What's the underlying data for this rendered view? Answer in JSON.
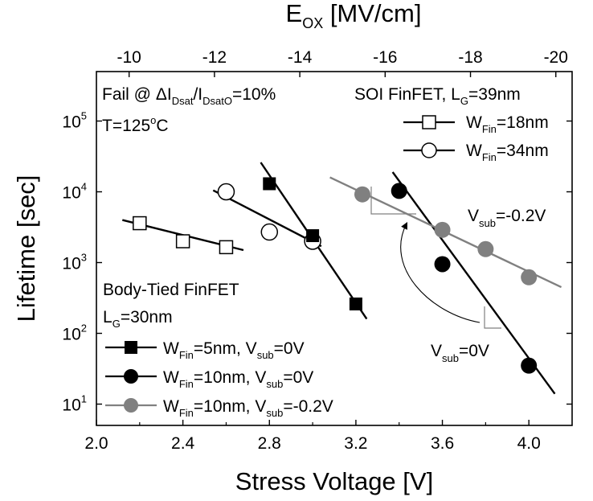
{
  "chart_data": {
    "type": "scatter",
    "xlabel": "Stress Voltage [V]",
    "ylabel": "Lifetime [sec]",
    "x2label": "E",
    "x2label_sub": "OX",
    "x2label_unit": " [MV/cm]",
    "xlim": [
      2.0,
      4.2
    ],
    "ylim": [
      5,
      500000
    ],
    "yscale": "log",
    "x_ticks": [
      "2.0",
      "2.4",
      "2.8",
      "3.2",
      "3.6",
      "4.0"
    ],
    "x_tick_values": [
      2.0,
      2.4,
      2.8,
      3.2,
      3.6,
      4.0
    ],
    "x2_ticks": [
      "-10",
      "-12",
      "-14",
      "-16",
      "-18",
      "-20"
    ],
    "x2_tick_values": [
      -10,
      -12,
      -14,
      -16,
      -18,
      -20
    ],
    "x2_map": {
      "slope": -5.067,
      "intercept": 0.9
    },
    "y_ticks": [
      {
        "value": 10,
        "base": "10",
        "exp": "1"
      },
      {
        "value": 100,
        "base": "10",
        "exp": "2"
      },
      {
        "value": 1000,
        "base": "10",
        "exp": "3"
      },
      {
        "value": 10000,
        "base": "10",
        "exp": "4"
      },
      {
        "value": 100000,
        "base": "10",
        "exp": "5"
      }
    ],
    "series": [
      {
        "marker": "open-square",
        "color": "#000000",
        "x": [
          2.2,
          2.4,
          2.6
        ],
        "y": [
          3600,
          2000,
          1650
        ],
        "fit": [
          [
            2.12,
            4000
          ],
          [
            2.68,
            1500
          ]
        ]
      },
      {
        "marker": "open-circle",
        "color": "#000000",
        "x": [
          2.6,
          2.8,
          3.0
        ],
        "y": [
          10000,
          2700,
          2000
        ],
        "fit": [
          [
            2.54,
            10500
          ],
          [
            3.04,
            1700
          ]
        ]
      },
      {
        "marker": "filled-square",
        "color": "#000000",
        "x": [
          2.8,
          3.0,
          3.2
        ],
        "y": [
          13000,
          2400,
          260
        ],
        "fit": [
          [
            2.76,
            26000
          ],
          [
            3.25,
            160
          ]
        ]
      },
      {
        "marker": "filled-circle",
        "color": "#000000",
        "x": [
          3.4,
          3.6,
          4.0
        ],
        "y": [
          10300,
          950,
          35
        ],
        "fit": [
          [
            3.37,
            19000
          ],
          [
            4.12,
            14
          ]
        ]
      },
      {
        "marker": "filled-circle",
        "color": "#808080",
        "x": [
          3.23,
          3.6,
          3.8,
          4.0
        ],
        "y": [
          9200,
          2900,
          1550,
          620
        ],
        "fit": [
          [
            3.08,
            16000
          ],
          [
            4.15,
            450
          ]
        ]
      }
    ],
    "annotations": {
      "fail_prefix": "Fail @ ",
      "fail_delta": "Δ",
      "fail_I1": "I",
      "fail_sub1": "Dsat",
      "fail_slash": "/I",
      "fail_sub2": "DsatO",
      "fail_rest": "=10%",
      "temp": "T=125",
      "temp_deg": "o",
      "temp_unit": "C",
      "soi_title": "SOI FinFET, L",
      "soi_sub": "G",
      "soi_rest": "=39nm",
      "body_title": "Body-Tied FinFET",
      "body_L": "L",
      "body_L_sub": "G",
      "body_L_rest": "=30nm",
      "vsub_gray_main": "V",
      "vsub_gray_sub": "sub",
      "vsub_gray_rest": "=-0.2V",
      "vsub_black_main": "V",
      "vsub_black_sub": "sub",
      "vsub_black_rest": "=0V"
    },
    "legend_soi": [
      {
        "main": "W",
        "sub": "Fin",
        "rest": "=18nm"
      },
      {
        "main": "W",
        "sub": "Fin",
        "rest": "=34nm"
      }
    ],
    "legend_body": [
      {
        "main": "W",
        "sub": "Fin",
        "rest": "=5nm, V",
        "sub2": "sub",
        "rest2": "=0V"
      },
      {
        "main": "W",
        "sub": "Fin",
        "rest": "=10nm, V",
        "sub2": "sub",
        "rest2": "=0V"
      },
      {
        "main": "W",
        "sub": "Fin",
        "rest": "=10nm, V",
        "sub2": "sub",
        "rest2": "=-0.2V"
      }
    ]
  }
}
